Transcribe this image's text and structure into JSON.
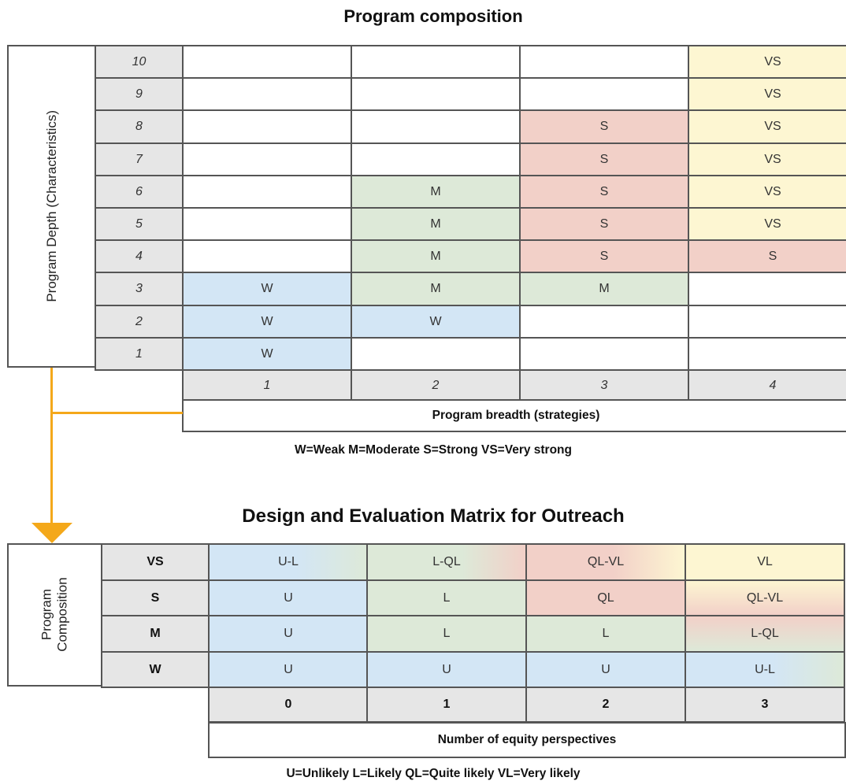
{
  "composition": {
    "title": "Program composition",
    "depth_label": "Program Depth (Characteristics)",
    "breadth_label": "Program breadth (strategies)",
    "legend": "W=Weak M=Moderate S=Strong VS=Very strong",
    "row_labels": [
      "10",
      "9",
      "8",
      "7",
      "6",
      "5",
      "4",
      "3",
      "2",
      "1"
    ],
    "col_labels": [
      "1",
      "2",
      "3",
      "4"
    ],
    "grid": [
      [
        "",
        "",
        "",
        "VS"
      ],
      [
        "",
        "",
        "",
        "VS"
      ],
      [
        "",
        "",
        "S",
        "VS"
      ],
      [
        "",
        "",
        "S",
        "VS"
      ],
      [
        "",
        "M",
        "S",
        "VS"
      ],
      [
        "",
        "M",
        "S",
        "VS"
      ],
      [
        "",
        "M",
        "S",
        "S"
      ],
      [
        "W",
        "M",
        "M",
        ""
      ],
      [
        "W",
        "W",
        "",
        ""
      ],
      [
        "W",
        "",
        "",
        ""
      ]
    ],
    "colors": {
      "W": "#d3e6f5",
      "M": "#dde9d8",
      "S": "#f2d0c8",
      "VS": "#fdf6d2"
    }
  },
  "matrix": {
    "title": "Design and Evaluation Matrix for Outreach",
    "side_label_line1": "Program",
    "side_label_line2": "Composition",
    "equity_label": "Number of equity perspectives",
    "legend": "U=Unlikely L=Likely QL=Quite likely VL=Very likely",
    "row_labels": [
      "VS",
      "S",
      "M",
      "W"
    ],
    "col_labels": [
      "0",
      "1",
      "2",
      "3"
    ],
    "grid": [
      [
        "U-L",
        "L-QL",
        "QL-VL",
        "VL"
      ],
      [
        "U",
        "L",
        "QL",
        "QL-VL"
      ],
      [
        "U",
        "L",
        "L",
        "L-QL"
      ],
      [
        "U",
        "U",
        "U",
        "U-L"
      ]
    ],
    "colors": {
      "U": "#d3e6f5",
      "L": "#dde9d8",
      "QL": "#f2d0c8",
      "VL": "#fdf6d2"
    }
  },
  "connector_color": "#f4a81a"
}
